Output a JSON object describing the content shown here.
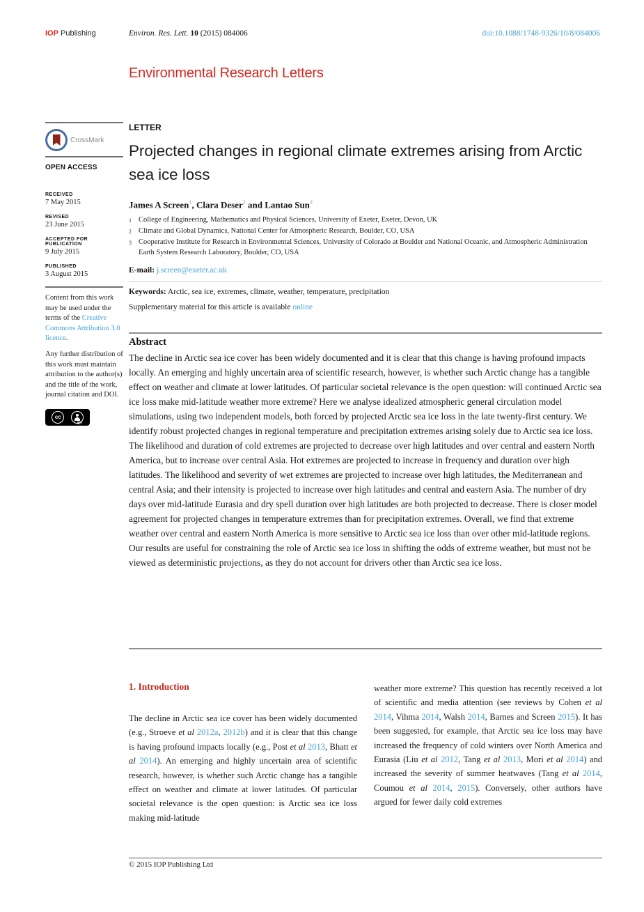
{
  "colors": {
    "brand_red": "#d5281f",
    "iop_red": "#e8251d",
    "section_red": "#c42b1f",
    "link_blue": "#45a1d6",
    "crossmark_blue": "#476d9f",
    "crossmark_bookmark": "#8f2318"
  },
  "header": {
    "publisher_bold": "IOP",
    "publisher_rest": " Publishing",
    "citation": [
      {
        "t": "Environ. Res. Lett. ",
        "s": "i"
      },
      {
        "t": "10",
        "s": "b"
      },
      {
        "t": " (2015) 084006"
      }
    ],
    "doi": "doi:10.1088/1748-9326/10/8/084006"
  },
  "journal": {
    "title": "Environmental Research Letters"
  },
  "sidebar": {
    "crossmark_label": "CrossMark",
    "open_access": "OPEN ACCESS",
    "dates": [
      {
        "label": "RECEIVED",
        "value": "7 May 2015"
      },
      {
        "label": "REVISED",
        "value": "23 June 2015"
      },
      {
        "label": "ACCEPTED FOR PUBLICATION",
        "value": "9 July 2015"
      },
      {
        "label": "PUBLISHED",
        "value": "3 August 2015"
      }
    ],
    "license1": [
      {
        "t": "Content from this work may be used under the terms of the "
      },
      {
        "t": "Creative Commons Attribution 3.0 licence",
        "s": "link",
        "n": "cc-licence-link"
      },
      {
        "t": "."
      }
    ],
    "license2": "Any further distribution of this work must maintain attribution to the author(s) and the title of the work, journal citation and DOI.",
    "cc_label": "cc",
    "by_label": "BY"
  },
  "article": {
    "type_label": "LETTER",
    "title": "Projected changes in regional climate extremes arising from Arctic sea ice loss",
    "authors": [
      {
        "t": "James A Screen",
        "s": "b"
      },
      {
        "t": "1",
        "s": "sup"
      },
      {
        "t": ", ",
        "s": "b"
      },
      {
        "t": "Clara Deser",
        "s": "b"
      },
      {
        "t": "2",
        "s": "sup"
      },
      {
        "t": " and ",
        "s": "b"
      },
      {
        "t": "Lantao Sun",
        "s": "b"
      },
      {
        "t": "3",
        "s": "sup"
      }
    ],
    "affiliations": [
      {
        "num": "1",
        "text": "College of Engineering, Mathematics and Physical Sciences, University of Exeter, Exeter, Devon, UK"
      },
      {
        "num": "2",
        "text": "Climate and Global Dynamics, National Center for Atmospheric Research, Boulder, CO, USA"
      },
      {
        "num": "3",
        "text": "Cooperative Institute for Research in Environmental Sciences, University of Colorado at Boulder and National Oceanic, and Atmospheric Administration Earth System Research Laboratory, Boulder, CO, USA"
      }
    ],
    "email": [
      {
        "t": "E-mail: ",
        "s": "b"
      },
      {
        "t": "j.screen@exeter.ac.uk",
        "s": "link",
        "n": "email-link"
      }
    ],
    "keywords_label": "Keywords:",
    "keywords": " Arctic, sea ice, extremes, climate, weather, temperature, precipitation",
    "supplementary": [
      {
        "t": "Supplementary material for this article is available "
      },
      {
        "t": "online",
        "s": "link",
        "n": "supplementary-online-link"
      }
    ],
    "abstract_title": "Abstract",
    "abstract": "The decline in Arctic sea ice cover has been widely documented and it is clear that this change is having profound impacts locally. An emerging and highly uncertain area of scientific research, however, is whether such Arctic change has a tangible effect on weather and climate at lower latitudes. Of particular societal relevance is the open question: will continued Arctic sea ice loss make mid-latitude weather more extreme? Here we analyse idealized atmospheric general circulation model simulations, using two independent models, both forced by projected Arctic sea ice loss in the late twenty-first century. We identify robust projected changes in regional temperature and precipitation extremes arising solely due to Arctic sea ice loss. The likelihood and duration of cold extremes are projected to decrease over high latitudes and over central and eastern North America, but to increase over central Asia. Hot extremes are projected to increase in frequency and duration over high latitudes. The likelihood and severity of wet extremes are projected to increase over high latitudes, the Mediterranean and central Asia; and their intensity is projected to increase over high latitudes and central and eastern Asia. The number of dry days over mid-latitude Eurasia and dry spell duration over high latitudes are both projected to decrease. There is closer model agreement for projected changes in temperature extremes than for precipitation extremes. Overall, we find that extreme weather over central and eastern North America is more sensitive to Arctic sea ice loss than over other mid-latitude regions. Our results are useful for constraining the role of Arctic sea ice loss in shifting the odds of extreme weather, but must not be viewed as deterministic projections, as they do not account for drivers other than Arctic sea ice loss."
  },
  "body": {
    "section_title": "1. Introduction",
    "col1": [
      {
        "t": "The decline in Arctic sea ice cover has been widely documented (e.g., Stroeve "
      },
      {
        "t": "et al",
        "s": "i"
      },
      {
        "t": " "
      },
      {
        "t": "2012a",
        "s": "link",
        "n": "ref-stroeve-2012a"
      },
      {
        "t": ", "
      },
      {
        "t": "2012b",
        "s": "link",
        "n": "ref-stroeve-2012b"
      },
      {
        "t": ") and it is clear that this change is having profound impacts locally (e.g., Post "
      },
      {
        "t": "et al",
        "s": "i"
      },
      {
        "t": " "
      },
      {
        "t": "2013",
        "s": "link",
        "n": "ref-post-2013"
      },
      {
        "t": ", Bhatt "
      },
      {
        "t": "et al",
        "s": "i"
      },
      {
        "t": " "
      },
      {
        "t": "2014",
        "s": "link",
        "n": "ref-bhatt-2014"
      },
      {
        "t": "). An emerging and highly uncertain area of scientific research, however, is whether such Arctic change has a tangible effect on weather and climate at lower latitudes. Of particular societal relevance is the open question: is Arctic sea ice loss making mid-latitude"
      }
    ],
    "col2": [
      {
        "t": "weather more extreme? This question has recently received a lot of scientific and media attention (see reviews by Cohen "
      },
      {
        "t": "et al",
        "s": "i"
      },
      {
        "t": " "
      },
      {
        "t": "2014",
        "s": "link",
        "n": "ref-cohen-2014"
      },
      {
        "t": ", Vihma "
      },
      {
        "t": "2014",
        "s": "link",
        "n": "ref-vihma-2014"
      },
      {
        "t": ", Walsh "
      },
      {
        "t": "2014",
        "s": "link",
        "n": "ref-walsh-2014"
      },
      {
        "t": ", Barnes and Screen "
      },
      {
        "t": "2015",
        "s": "link",
        "n": "ref-barnes-screen-2015"
      },
      {
        "t": "). It has been suggested, for example, that Arctic sea ice loss may have increased the frequency of cold winters over North America and Eurasia (Liu "
      },
      {
        "t": "et al",
        "s": "i"
      },
      {
        "t": " "
      },
      {
        "t": "2012",
        "s": "link",
        "n": "ref-liu-2012"
      },
      {
        "t": ", Tang "
      },
      {
        "t": "et al",
        "s": "i"
      },
      {
        "t": " "
      },
      {
        "t": "2013",
        "s": "link",
        "n": "ref-tang-2013"
      },
      {
        "t": ", Mori "
      },
      {
        "t": "et al",
        "s": "i"
      },
      {
        "t": " "
      },
      {
        "t": "2014",
        "s": "link",
        "n": "ref-mori-2014"
      },
      {
        "t": ") and increased the severity of summer heatwaves (Tang "
      },
      {
        "t": "et al",
        "s": "i"
      },
      {
        "t": " "
      },
      {
        "t": "2014",
        "s": "link",
        "n": "ref-tang-2014"
      },
      {
        "t": ", Coumou "
      },
      {
        "t": "et al",
        "s": "i"
      },
      {
        "t": " "
      },
      {
        "t": "2014",
        "s": "link",
        "n": "ref-coumou-2014"
      },
      {
        "t": ", "
      },
      {
        "t": "2015",
        "s": "link",
        "n": "ref-coumou-2015"
      },
      {
        "t": "). Conversely, other authors have argued for fewer daily cold extremes"
      }
    ]
  },
  "footer": {
    "copyright": "© 2015 IOP Publishing Ltd"
  }
}
